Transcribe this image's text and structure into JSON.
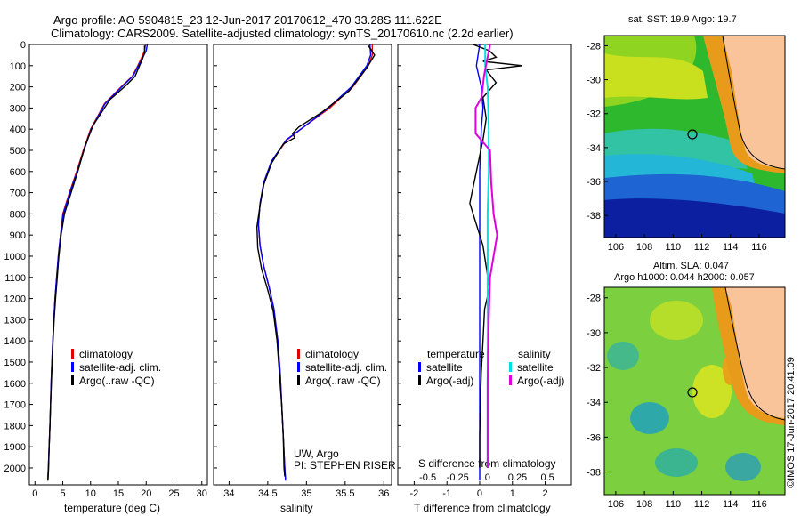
{
  "header": {
    "line1": "Argo profile: AO 5904815_23 12-Jun-2017 20170612_470 33.28S 111.622E",
    "line2": "Climatology: CARS2009. Satellite-adjusted climatology: synTS_20170610.nc (2.2d earlier)"
  },
  "side_labels": {
    "sst": "sat. SST: 19.9 Argo: 19.7",
    "sla1": "Altim. SLA: 0.047",
    "sla2": "Argo h1000: 0.044 h2000: 0.057",
    "imos": "©IMOS 17-Jun-2017 20:41:09"
  },
  "panels": {
    "temp": {
      "xlabel": "temperature (deg C)",
      "legend": [
        "climatology",
        "satellite-adj. clim.",
        "Argo(..raw -QC)"
      ]
    },
    "sal": {
      "xlabel": "salinity",
      "legend": [
        "climatology",
        "satellite-adj. clim.",
        "Argo(..raw -QC)"
      ],
      "credit1": "UW, Argo",
      "credit2": "PI: STEPHEN RISER"
    },
    "diff": {
      "s_axis_label": "S difference from climatology",
      "xlabel": "T difference from climatology",
      "legend_t_head": "temperature",
      "legend_s_head": "salinity",
      "legend_sat": "satellite",
      "legend_argo": "Argo(-adj)"
    }
  },
  "colors": {
    "climatology": "#e00000",
    "satellite": "#0000ff",
    "argo": "#000000",
    "s_satellite": "#00e0e0",
    "s_argo": "#e000e0",
    "land": "#f9c49a"
  },
  "chart_data": [
    {
      "type": "line",
      "name": "temperature",
      "y_ticks": [
        0,
        100,
        200,
        300,
        400,
        500,
        600,
        700,
        800,
        900,
        1000,
        1100,
        1200,
        1300,
        1400,
        1500,
        1600,
        1700,
        1800,
        1900,
        2000
      ],
      "ylim": [
        0,
        2080
      ],
      "xlim": [
        -1,
        31
      ],
      "x_ticks": [
        0,
        5,
        10,
        15,
        20,
        25,
        30
      ],
      "series": [
        {
          "name": "climatology",
          "color_key": "climatology",
          "points": [
            [
              19.9,
              0
            ],
            [
              19.7,
              30
            ],
            [
              19.2,
              60
            ],
            [
              18.5,
              100
            ],
            [
              17.5,
              150
            ],
            [
              15.5,
              200
            ],
            [
              12.5,
              280
            ],
            [
              10.0,
              400
            ],
            [
              8.7,
              500
            ],
            [
              7.5,
              600
            ],
            [
              6.2,
              700
            ],
            [
              5.0,
              800
            ],
            [
              4.6,
              900
            ],
            [
              4.2,
              1000
            ],
            [
              3.9,
              1100
            ],
            [
              3.6,
              1200
            ],
            [
              3.4,
              1300
            ],
            [
              3.2,
              1400
            ],
            [
              3.05,
              1500
            ],
            [
              2.9,
              1600
            ],
            [
              2.8,
              1700
            ],
            [
              2.7,
              1800
            ],
            [
              2.55,
              1900
            ],
            [
              2.4,
              2000
            ],
            [
              2.3,
              2060
            ]
          ]
        },
        {
          "name": "satellite-adj. clim.",
          "color_key": "satellite",
          "points": [
            [
              20.2,
              0
            ],
            [
              20.0,
              30
            ],
            [
              19.4,
              60
            ],
            [
              18.6,
              100
            ],
            [
              17.6,
              150
            ],
            [
              15.6,
              200
            ],
            [
              12.6,
              280
            ],
            [
              10.1,
              400
            ],
            [
              8.8,
              500
            ],
            [
              7.6,
              600
            ],
            [
              6.3,
              700
            ],
            [
              5.1,
              800
            ],
            [
              4.6,
              900
            ],
            [
              4.2,
              1000
            ],
            [
              3.9,
              1100
            ],
            [
              3.6,
              1200
            ],
            [
              3.4,
              1300
            ],
            [
              3.2,
              1400
            ],
            [
              3.05,
              1500
            ],
            [
              2.9,
              1600
            ],
            [
              2.8,
              1700
            ],
            [
              2.7,
              1800
            ],
            [
              2.55,
              1900
            ],
            [
              2.4,
              2000
            ],
            [
              2.3,
              2060
            ]
          ]
        },
        {
          "name": "Argo(..raw -QC)",
          "color_key": "argo",
          "points": [
            [
              19.7,
              5
            ],
            [
              19.7,
              40
            ],
            [
              19.3,
              70
            ],
            [
              18.8,
              100
            ],
            [
              18.0,
              150
            ],
            [
              16.5,
              190
            ],
            [
              13.5,
              260
            ],
            [
              10.5,
              380
            ],
            [
              9.0,
              480
            ],
            [
              7.7,
              600
            ],
            [
              6.5,
              700
            ],
            [
              5.3,
              800
            ],
            [
              4.7,
              900
            ],
            [
              4.3,
              1000
            ],
            [
              4.0,
              1100
            ],
            [
              3.7,
              1200
            ],
            [
              3.45,
              1300
            ],
            [
              3.25,
              1400
            ],
            [
              3.1,
              1500
            ],
            [
              2.95,
              1600
            ],
            [
              2.8,
              1700
            ],
            [
              2.7,
              1800
            ],
            [
              2.55,
              1900
            ],
            [
              2.45,
              2000
            ],
            [
              2.35,
              2060
            ]
          ]
        }
      ]
    },
    {
      "type": "line",
      "name": "salinity",
      "xlim": [
        33.8,
        36.1
      ],
      "x_ticks": [
        34,
        34.5,
        35,
        35.5,
        36
      ],
      "ylim": [
        0,
        2080
      ],
      "series": [
        {
          "name": "climatology",
          "color_key": "climatology",
          "points": [
            [
              35.85,
              0
            ],
            [
              35.85,
              50
            ],
            [
              35.8,
              100
            ],
            [
              35.6,
              200
            ],
            [
              35.3,
              300
            ],
            [
              35.0,
              380
            ],
            [
              34.75,
              450
            ],
            [
              34.55,
              550
            ],
            [
              34.45,
              650
            ],
            [
              34.4,
              750
            ],
            [
              34.38,
              850
            ],
            [
              34.4,
              950
            ],
            [
              34.45,
              1050
            ],
            [
              34.52,
              1150
            ],
            [
              34.58,
              1250
            ],
            [
              34.63,
              1400
            ],
            [
              34.66,
              1550
            ],
            [
              34.68,
              1700
            ],
            [
              34.7,
              1850
            ],
            [
              34.72,
              2000
            ],
            [
              34.73,
              2060
            ]
          ]
        },
        {
          "name": "satellite-adj. clim.",
          "color_key": "satellite",
          "points": [
            [
              35.82,
              0
            ],
            [
              35.83,
              50
            ],
            [
              35.78,
              100
            ],
            [
              35.58,
              200
            ],
            [
              35.28,
              300
            ],
            [
              35.0,
              380
            ],
            [
              34.74,
              450
            ],
            [
              34.55,
              550
            ],
            [
              34.45,
              650
            ],
            [
              34.4,
              750
            ],
            [
              34.38,
              850
            ],
            [
              34.4,
              950
            ],
            [
              34.45,
              1050
            ],
            [
              34.52,
              1150
            ],
            [
              34.58,
              1250
            ],
            [
              34.63,
              1400
            ],
            [
              34.66,
              1550
            ],
            [
              34.68,
              1700
            ],
            [
              34.7,
              1850
            ],
            [
              34.72,
              2000
            ],
            [
              34.73,
              2060
            ]
          ]
        },
        {
          "name": "Argo(..raw -QC)",
          "color_key": "argo",
          "points": [
            [
              35.8,
              5
            ],
            [
              35.88,
              50
            ],
            [
              35.78,
              110
            ],
            [
              35.55,
              220
            ],
            [
              35.2,
              320
            ],
            [
              34.9,
              390
            ],
            [
              34.82,
              420
            ],
            [
              34.85,
              440
            ],
            [
              34.7,
              470
            ],
            [
              34.55,
              560
            ],
            [
              34.45,
              660
            ],
            [
              34.4,
              760
            ],
            [
              34.36,
              860
            ],
            [
              34.37,
              960
            ],
            [
              34.42,
              1060
            ],
            [
              34.5,
              1160
            ],
            [
              34.57,
              1260
            ],
            [
              34.62,
              1400
            ],
            [
              34.65,
              1550
            ],
            [
              34.68,
              1700
            ],
            [
              34.7,
              1850
            ],
            [
              34.71,
              2000
            ],
            [
              34.72,
              2040
            ]
          ]
        }
      ]
    },
    {
      "type": "line",
      "name": "differences",
      "t_xlim": [
        -2.5,
        2.8
      ],
      "t_x_ticks": [
        -2,
        -1,
        0,
        1,
        2
      ],
      "s_xlim": [
        -0.75,
        0.7
      ],
      "s_x_ticks": [
        "-0.5",
        "-0.25",
        "0",
        "0.25",
        "0.5"
      ],
      "ylim": [
        0,
        2080
      ],
      "series": [
        {
          "name": "T satellite",
          "color_key": "satellite",
          "axis": "t",
          "points": [
            [
              0.0,
              0
            ],
            [
              -0.1,
              100
            ],
            [
              0.05,
              200
            ],
            [
              0.1,
              300
            ],
            [
              0.05,
              400
            ],
            [
              0.0,
              600
            ],
            [
              0.0,
              800
            ],
            [
              0.0,
              1000
            ],
            [
              0.0,
              1200
            ],
            [
              0.0,
              1500
            ],
            [
              0.0,
              1800
            ],
            [
              0.0,
              2060
            ]
          ]
        },
        {
          "name": "T Argo(-adj)",
          "color_key": "argo",
          "axis": "t",
          "points": [
            [
              -0.2,
              0
            ],
            [
              0.3,
              30
            ],
            [
              0.5,
              60
            ],
            [
              0.1,
              80
            ],
            [
              1.3,
              100
            ],
            [
              0.2,
              120
            ],
            [
              0.5,
              180
            ],
            [
              0.1,
              250
            ],
            [
              0.2,
              350
            ],
            [
              0.1,
              450
            ],
            [
              -0.1,
              600
            ],
            [
              -0.3,
              750
            ],
            [
              -0.1,
              850
            ],
            [
              0.1,
              950
            ],
            [
              0.2,
              1050
            ],
            [
              0.3,
              1150
            ],
            [
              0.15,
              1250
            ],
            [
              0.1,
              1400
            ],
            [
              0.05,
              1550
            ],
            [
              0.02,
              1700
            ],
            [
              0.0,
              1850
            ],
            [
              0.0,
              2000
            ]
          ]
        },
        {
          "name": "S satellite",
          "color_key": "s_satellite",
          "axis": "s",
          "points": [
            [
              -0.02,
              0
            ],
            [
              -0.02,
              100
            ],
            [
              0.0,
              200
            ],
            [
              0.01,
              400
            ],
            [
              0.01,
              600
            ],
            [
              0.0,
              800
            ],
            [
              0.0,
              1000
            ],
            [
              0.0,
              1300
            ],
            [
              0.0,
              1600
            ],
            [
              0.0,
              2000
            ]
          ]
        },
        {
          "name": "S Argo(-adj)",
          "color_key": "s_argo",
          "axis": "s",
          "points": [
            [
              0.02,
              0
            ],
            [
              -0.03,
              150
            ],
            [
              -0.05,
              250
            ],
            [
              -0.1,
              300
            ],
            [
              -0.1,
              420
            ],
            [
              0.02,
              500
            ],
            [
              0.03,
              650
            ],
            [
              0.05,
              800
            ],
            [
              0.08,
              900
            ],
            [
              0.05,
              1000
            ],
            [
              0.02,
              1100
            ],
            [
              0.01,
              1300
            ],
            [
              0.0,
              1600
            ],
            [
              0.0,
              2000
            ]
          ]
        }
      ]
    },
    {
      "type": "heatmap",
      "name": "sst_map",
      "title": "sat. SST: 19.9 Argo: 19.7",
      "x_ticks": [
        106,
        108,
        110,
        112,
        114,
        116
      ],
      "y_ticks": [
        -28,
        -30,
        -32,
        -34,
        -36,
        -38
      ],
      "argo_position": {
        "lon": 111.622,
        "lat": -33.28
      }
    },
    {
      "type": "heatmap",
      "name": "sla_map",
      "title": "Altim. SLA: 0.047",
      "x_ticks": [
        106,
        108,
        110,
        112,
        114,
        116
      ],
      "y_ticks": [
        -28,
        -30,
        -32,
        -34,
        -36,
        -38
      ],
      "argo_position": {
        "lon": 111.622,
        "lat": -33.28
      }
    }
  ]
}
